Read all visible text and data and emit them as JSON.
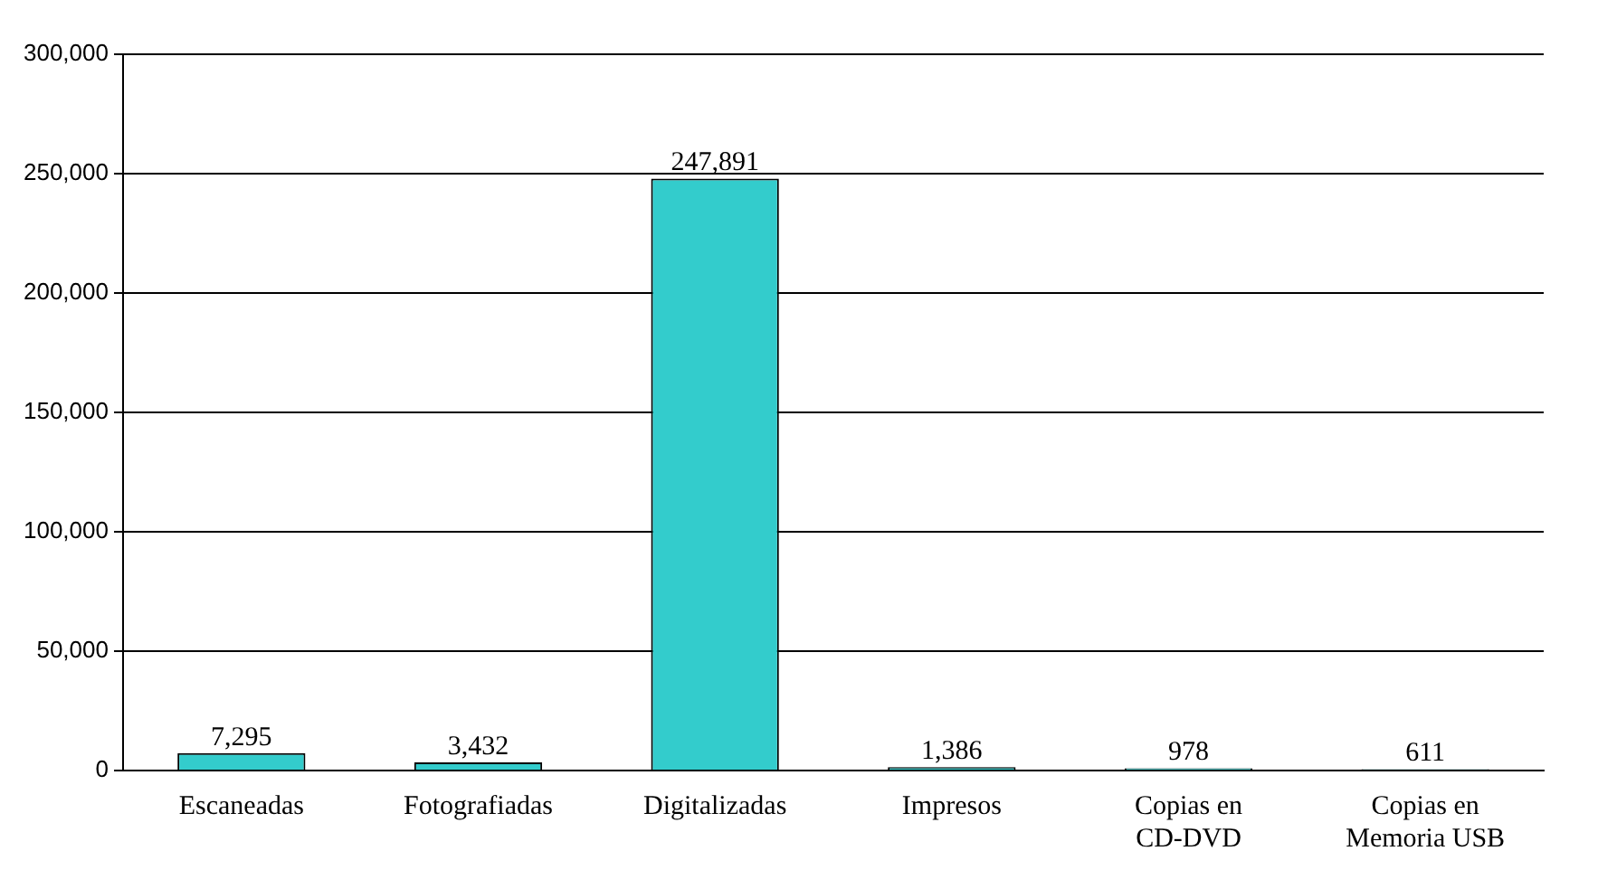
{
  "chart_data": {
    "type": "bar",
    "categories": [
      "Escaneadas",
      "Fotografiadas",
      "Digitalizadas",
      "Impresos",
      "Copias en CD-DVD",
      "Copias en Memoria USB"
    ],
    "values": [
      7295,
      3432,
      247891,
      1386,
      978,
      611
    ],
    "value_labels": [
      "7,295",
      "3,432",
      "247,891",
      "1,386",
      "978",
      "611"
    ],
    "color": "#33cccc",
    "ylim": [
      0,
      300000
    ],
    "yticks": [
      {
        "value": 0,
        "label": "0"
      },
      {
        "value": 50000,
        "label": "50,000"
      },
      {
        "value": 100000,
        "label": "100,000"
      },
      {
        "value": 150000,
        "label": "150,000"
      },
      {
        "value": 200000,
        "label": "200,000"
      },
      {
        "value": 250000,
        "label": "250,000"
      },
      {
        "value": 300000,
        "label": "300,000"
      }
    ],
    "grid": "y",
    "legend": false
  }
}
